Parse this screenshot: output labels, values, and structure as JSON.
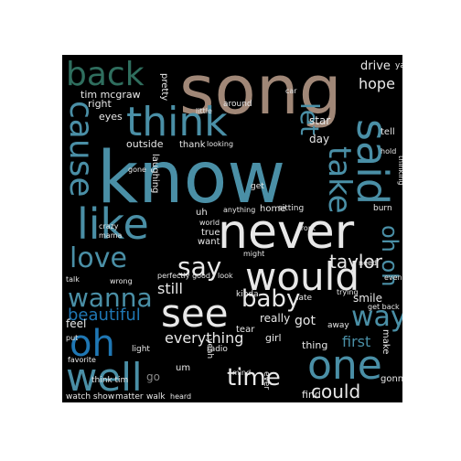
{
  "palette": {
    "background": "#000000",
    "teal": "#4a8fa6",
    "blue": "#1f77b4",
    "white": "#e8e8e8",
    "tan": "#a08777",
    "green": "#2f6e5e",
    "gray": "#8a8a8a"
  },
  "words": [
    {
      "text": "song",
      "color": "tan"
    },
    {
      "text": "know",
      "color": "teal"
    },
    {
      "text": "think",
      "color": "teal"
    },
    {
      "text": "never",
      "color": "white"
    },
    {
      "text": "said",
      "color": "teal"
    },
    {
      "text": "back",
      "color": "green"
    },
    {
      "text": "cause",
      "color": "teal"
    },
    {
      "text": "like",
      "color": "teal"
    },
    {
      "text": "would",
      "color": "white"
    },
    {
      "text": "see",
      "color": "white"
    },
    {
      "text": "one",
      "color": "teal"
    },
    {
      "text": "well",
      "color": "teal"
    },
    {
      "text": "oh",
      "color": "blue"
    },
    {
      "text": "love",
      "color": "teal"
    },
    {
      "text": "wanna",
      "color": "teal"
    },
    {
      "text": "way",
      "color": "teal"
    },
    {
      "text": "take",
      "color": "teal"
    },
    {
      "text": "say",
      "color": "white"
    },
    {
      "text": "baby",
      "color": "white"
    },
    {
      "text": "time",
      "color": "white"
    },
    {
      "text": "could",
      "color": "white"
    },
    {
      "text": "let",
      "color": "teal"
    },
    {
      "text": "oh oh",
      "color": "teal"
    },
    {
      "text": "hope",
      "color": "white"
    },
    {
      "text": "taylor",
      "color": "white"
    },
    {
      "text": "beautiful",
      "color": "blue"
    },
    {
      "text": "everything",
      "color": "white"
    },
    {
      "text": "still",
      "color": "white"
    },
    {
      "text": "first",
      "color": "teal"
    },
    {
      "text": "tim mcgraw",
      "color": "white"
    },
    {
      "text": "go",
      "color": "gray"
    },
    {
      "text": "drive",
      "color": "white"
    },
    {
      "text": "star",
      "color": "white"
    },
    {
      "text": "day",
      "color": "white"
    },
    {
      "text": "got",
      "color": "white"
    },
    {
      "text": "feel",
      "color": "white"
    },
    {
      "text": "really",
      "color": "white"
    },
    {
      "text": "girl",
      "color": "white"
    },
    {
      "text": "thing",
      "color": "white"
    },
    {
      "text": "smile",
      "color": "white"
    },
    {
      "text": "find",
      "color": "white"
    },
    {
      "text": "gonna",
      "color": "white"
    },
    {
      "text": "make",
      "color": "white"
    },
    {
      "text": "outside",
      "color": "white"
    },
    {
      "text": "pretty",
      "color": "white"
    },
    {
      "text": "right",
      "color": "white"
    },
    {
      "text": "eyes",
      "color": "white"
    },
    {
      "text": "thank",
      "color": "white"
    },
    {
      "text": "looking",
      "color": "white"
    },
    {
      "text": "around",
      "color": "white"
    },
    {
      "text": "want",
      "color": "white"
    },
    {
      "text": "true",
      "color": "white"
    },
    {
      "text": "kinda",
      "color": "white"
    },
    {
      "text": "tear",
      "color": "white"
    },
    {
      "text": "radio",
      "color": "white"
    },
    {
      "text": "late",
      "color": "white"
    },
    {
      "text": "away",
      "color": "white"
    },
    {
      "text": "light",
      "color": "white"
    },
    {
      "text": "mind",
      "color": "white"
    },
    {
      "text": "ever",
      "color": "white"
    },
    {
      "text": "watch show",
      "color": "white"
    },
    {
      "text": "matter",
      "color": "white"
    },
    {
      "text": "walk",
      "color": "white"
    },
    {
      "text": "heard",
      "color": "white"
    },
    {
      "text": "laughing",
      "color": "white"
    },
    {
      "text": "home",
      "color": "white"
    },
    {
      "text": "sitting",
      "color": "white"
    },
    {
      "text": "anything",
      "color": "white"
    },
    {
      "text": "crazy",
      "color": "white"
    },
    {
      "text": "get",
      "color": "white"
    },
    {
      "text": "tell",
      "color": "white"
    },
    {
      "text": "um",
      "color": "white"
    },
    {
      "text": "uh",
      "color": "white"
    },
    {
      "text": "yeah",
      "color": "white"
    },
    {
      "text": "need",
      "color": "white"
    },
    {
      "text": "even",
      "color": "white"
    },
    {
      "text": "get back",
      "color": "white"
    },
    {
      "text": "look",
      "color": "white"
    },
    {
      "text": "put",
      "color": "white"
    },
    {
      "text": "favorite",
      "color": "white"
    },
    {
      "text": "talk",
      "color": "white"
    },
    {
      "text": "gone",
      "color": "white"
    },
    {
      "text": "front",
      "color": "white"
    },
    {
      "text": "trying",
      "color": "white"
    },
    {
      "text": "might",
      "color": "white"
    },
    {
      "text": "perfectly good",
      "color": "white"
    },
    {
      "text": "world",
      "color": "white"
    },
    {
      "text": "thinking",
      "color": "white"
    },
    {
      "text": "burn",
      "color": "white"
    },
    {
      "text": "hold",
      "color": "white"
    },
    {
      "text": "ya",
      "color": "white"
    },
    {
      "text": "little",
      "color": "white"
    },
    {
      "text": "car",
      "color": "white"
    },
    {
      "text": "think tim",
      "color": "white"
    },
    {
      "text": "wrong",
      "color": "white"
    },
    {
      "text": "mama",
      "color": "white"
    }
  ]
}
